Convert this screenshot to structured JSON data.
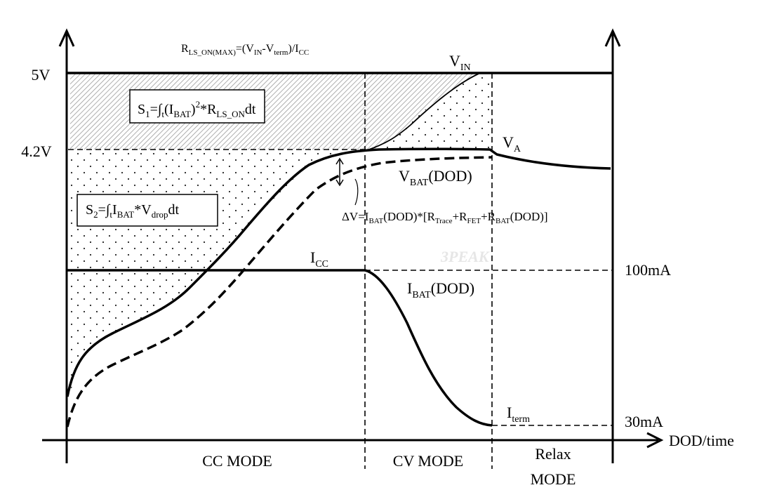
{
  "formula_top": {
    "lhs_main": "R",
    "lhs_sub": "LS_ON(MAX)",
    "eq": "=(V",
    "vin_sub": "IN",
    "dash": "-V",
    "term_sub": "term",
    "close": ")/I",
    "cc_sub": "CC"
  },
  "axis_labels": {
    "v5": "5V",
    "v42": "4.2V",
    "i100": "100mA",
    "i30": "30mA",
    "x_axis": "DOD/time"
  },
  "curve_labels": {
    "vin_main": "V",
    "vin_sub": "IN",
    "va_main": "V",
    "va_sub": "A",
    "vbat_main": "V",
    "vbat_sub": "BAT",
    "vbat_tail": "(DOD)",
    "icc_main": "I",
    "icc_sub": "CC",
    "ibat_main": "I",
    "ibat_sub": "BAT",
    "ibat_tail": "(DOD)",
    "iterm_main": "I",
    "iterm_sub": "term"
  },
  "s1_box": {
    "a": "S",
    "a_sub": "1",
    "b": "=∫",
    "b_sub": "t",
    "c": "(I",
    "c_sub": "BAT",
    "d": ")",
    "d_sup": "2",
    "e": "*R",
    "e_sub": "LS_ON",
    "f": "dt"
  },
  "s2_box": {
    "a": "S",
    "a_sub": "2",
    "b": "=∫",
    "b_sub": "t",
    "c": "I",
    "c_sub": "BAT",
    "d": "*V",
    "d_sub": "drop",
    "e": "dt"
  },
  "delta_v": {
    "a": "ΔV=I",
    "a_sub": "BAT",
    "b": "(DOD)*[R",
    "b_sub": "Trace",
    "c": "+R",
    "c_sub": "FET",
    "d": "+R",
    "d_sub": "BAT",
    "e": "(DOD)]"
  },
  "modes": {
    "cc": "CC MODE",
    "cv": "CV MODE",
    "relax_1": "Relax",
    "relax_2": "MODE"
  },
  "watermark": "3PEAK"
}
